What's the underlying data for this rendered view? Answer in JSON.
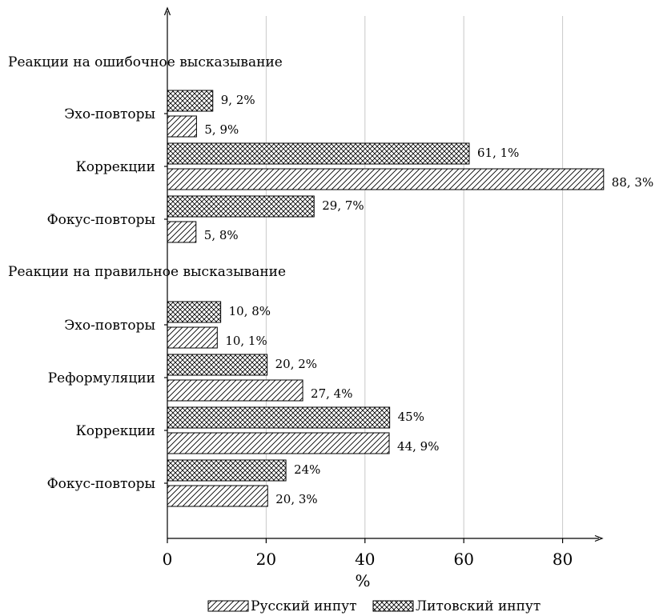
{
  "chart_data": {
    "type": "bar",
    "orientation": "horizontal",
    "xlabel": "%",
    "xlim": [
      0,
      88
    ],
    "xticks": [
      0,
      20,
      40,
      60,
      80
    ],
    "grid": "vertical",
    "legend_placement": "bottom-center",
    "series": [
      {
        "name": "Русский инпут",
        "pattern": "diagonal-hatch"
      },
      {
        "name": "Литовский инпут",
        "pattern": "crosshatch"
      }
    ],
    "groups": [
      {
        "title": "Реакции на ошибочное высказывание",
        "categories": [
          {
            "label": "Эхо-повторы",
            "russian": 5.9,
            "russian_label": "5, 9%",
            "lithuanian": 9.2,
            "lithuanian_label": "9, 2%"
          },
          {
            "label": "Коррекции",
            "russian": 88.3,
            "russian_label": "88, 3%",
            "lithuanian": 61.1,
            "lithuanian_label": "61, 1%"
          },
          {
            "label": "Фокус-повторы",
            "russian": 5.8,
            "russian_label": "5, 8%",
            "lithuanian": 29.7,
            "lithuanian_label": "29, 7%"
          }
        ]
      },
      {
        "title": "Реакции на правильное высказывание",
        "categories": [
          {
            "label": "Эхо-повторы",
            "russian": 10.1,
            "russian_label": "10, 1%",
            "lithuanian": 10.8,
            "lithuanian_label": "10, 8%"
          },
          {
            "label": "Реформуляции",
            "russian": 27.4,
            "russian_label": "27, 4%",
            "lithuanian": 20.2,
            "lithuanian_label": "20, 2%"
          },
          {
            "label": "Коррекции",
            "russian": 44.9,
            "russian_label": "44, 9%",
            "lithuanian": 45,
            "lithuanian_label": "45%"
          },
          {
            "label": "Фокус-повторы",
            "russian": 20.3,
            "russian_label": "20, 3%",
            "lithuanian": 24,
            "lithuanian_label": "24%"
          }
        ]
      }
    ]
  }
}
